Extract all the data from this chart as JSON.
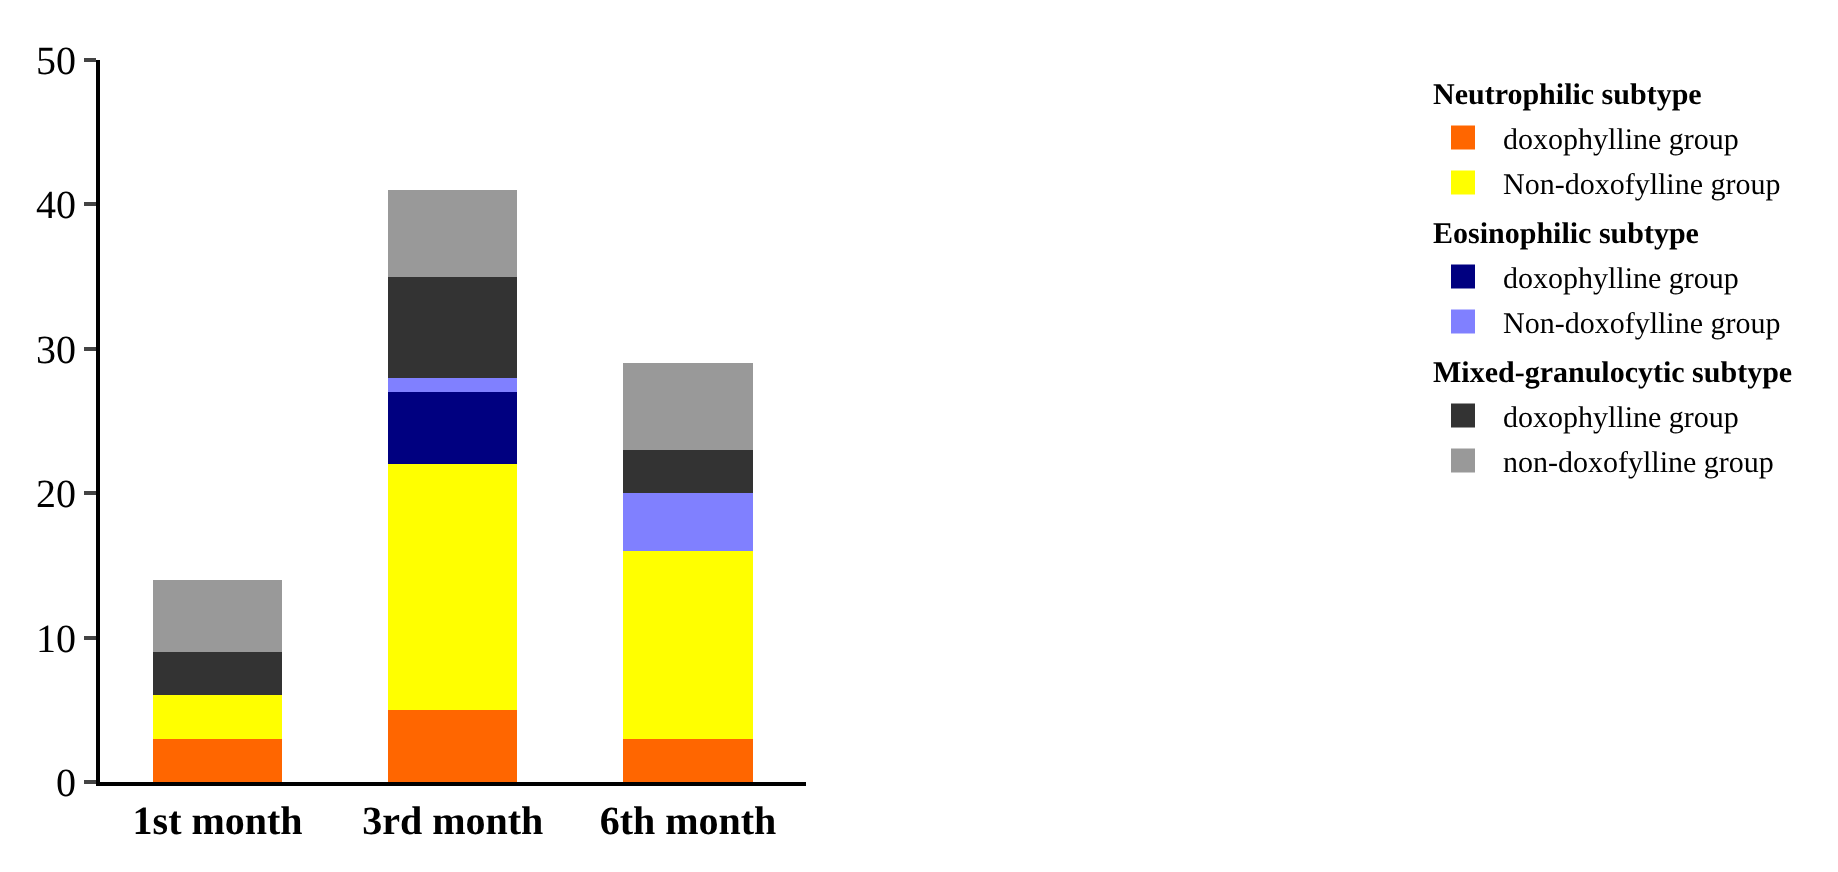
{
  "chart_data": {
    "type": "bar",
    "stacked": true,
    "categories": [
      "1st month",
      "3rd month",
      "6th month"
    ],
    "ylim": [
      0,
      50
    ],
    "yticks": [
      0,
      10,
      20,
      30,
      40,
      50
    ],
    "grid": false,
    "legend": "right",
    "annotations": [
      "Neutrophilic subtype",
      "Eosinophilic subtype",
      "Mixed-granulocytic subtype"
    ],
    "series": [
      {
        "name": "doxophylline group",
        "color": "#ff6600",
        "values": [
          3,
          5,
          3
        ]
      },
      {
        "name": "Non-doxofylline group",
        "color": "#ffff00",
        "values": [
          3,
          17,
          13
        ]
      },
      {
        "name": "doxophylline group",
        "color": "#000080",
        "values": [
          0,
          5,
          0
        ]
      },
      {
        "name": "Non-doxofylline group",
        "color": "#8080ff",
        "values": [
          0,
          1,
          4
        ]
      },
      {
        "name": "doxophylline group",
        "color": "#333333",
        "values": [
          3,
          7,
          3
        ]
      },
      {
        "name": "non-doxofylline group",
        "color": "#999999",
        "values": [
          5,
          6,
          6
        ]
      }
    ]
  }
}
